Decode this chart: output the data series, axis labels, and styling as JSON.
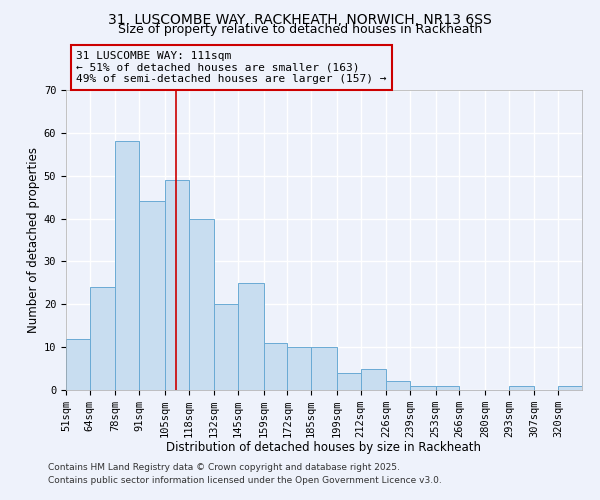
{
  "title1": "31, LUSCOMBE WAY, RACKHEATH, NORWICH, NR13 6SS",
  "title2": "Size of property relative to detached houses in Rackheath",
  "xlabel": "Distribution of detached houses by size in Rackheath",
  "ylabel": "Number of detached properties",
  "bins": [
    "51sqm",
    "64sqm",
    "78sqm",
    "91sqm",
    "105sqm",
    "118sqm",
    "132sqm",
    "145sqm",
    "159sqm",
    "172sqm",
    "185sqm",
    "199sqm",
    "212sqm",
    "226sqm",
    "239sqm",
    "253sqm",
    "266sqm",
    "280sqm",
    "293sqm",
    "307sqm",
    "320sqm"
  ],
  "bin_edges": [
    51,
    64,
    78,
    91,
    105,
    118,
    132,
    145,
    159,
    172,
    185,
    199,
    212,
    226,
    239,
    253,
    266,
    280,
    293,
    307,
    320
  ],
  "values": [
    12,
    24,
    58,
    44,
    49,
    40,
    20,
    25,
    11,
    10,
    10,
    4,
    5,
    2,
    1,
    1,
    0,
    0,
    1,
    0,
    1
  ],
  "bar_color": "#c8ddf0",
  "bar_edge_color": "#6aaad4",
  "reference_line_x": 111,
  "annotation_line1": "31 LUSCOMBE WAY: 111sqm",
  "annotation_line2": "← 51% of detached houses are smaller (163)",
  "annotation_line3": "49% of semi-detached houses are larger (157) →",
  "annotation_box_color": "#cc0000",
  "ylim": [
    0,
    70
  ],
  "yticks": [
    0,
    10,
    20,
    30,
    40,
    50,
    60,
    70
  ],
  "footer1": "Contains HM Land Registry data © Crown copyright and database right 2025.",
  "footer2": "Contains public sector information licensed under the Open Government Licence v3.0.",
  "background_color": "#eef2fb",
  "grid_color": "#ffffff",
  "title_fontsize": 10,
  "subtitle_fontsize": 9,
  "axis_label_fontsize": 8.5,
  "tick_fontsize": 7.5,
  "annotation_fontsize": 8,
  "footer_fontsize": 6.5
}
